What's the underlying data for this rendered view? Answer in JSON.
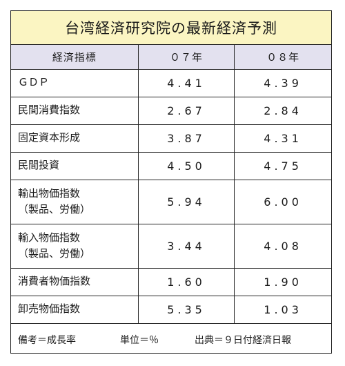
{
  "title": "台湾経済研究院の最新経済予測",
  "header": {
    "label": "経済指標",
    "col1": "０７年",
    "col2": "０８年"
  },
  "rows": [
    {
      "label": "ＧＤＰ",
      "y07": "4.41",
      "y08": "4.39"
    },
    {
      "label": "民間消費指数",
      "y07": "2.67",
      "y08": "2.84"
    },
    {
      "label": "固定資本形成",
      "y07": "3.87",
      "y08": "4.31"
    },
    {
      "label": "民間投資",
      "y07": "4.50",
      "y08": "4.75"
    },
    {
      "label": "輸出物価指数",
      "sublabel": "（製品、労働）",
      "y07": "5.94",
      "y08": "6.00"
    },
    {
      "label": "輸入物価指数",
      "sublabel": "（製品、労働）",
      "y07": "3.44",
      "y08": "4.08"
    },
    {
      "label": "消費者物価指数",
      "y07": "1.60",
      "y08": "1.90"
    },
    {
      "label": "卸売物価指数",
      "y07": "5.35",
      "y08": "1.03"
    }
  ],
  "footer": {
    "note1": "備考＝成長率",
    "note2": "単位＝％",
    "note3": "出典＝９日付経済日報"
  },
  "colors": {
    "title_bg": "#fbf5c2",
    "header_bg": "#e3e1ef"
  }
}
